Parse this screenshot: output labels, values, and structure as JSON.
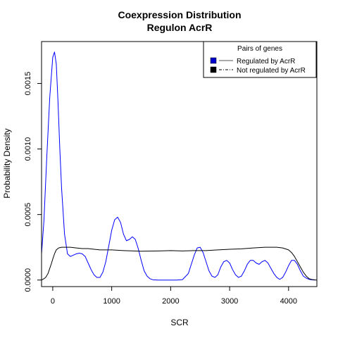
{
  "chart_data": {
    "type": "line",
    "title": "Coexpression Distribution",
    "subtitle": "Regulon AcrR",
    "xlabel": "SCR",
    "ylabel": "Probability Density",
    "xlim": [
      -190,
      4480
    ],
    "ylim": [
      -5e-05,
      0.00182
    ],
    "xticks": [
      0,
      1000,
      2000,
      3000,
      4000
    ],
    "xtick_labels": [
      "0",
      "1000",
      "2000",
      "3000",
      "4000"
    ],
    "yticks": [
      0,
      0.0005,
      0.001,
      0.0015
    ],
    "ytick_labels": [
      "0.0000",
      "0.0005",
      "0.0010",
      "0.0015"
    ],
    "grid": false,
    "legend": {
      "title": "Pairs of genes",
      "placement": "top-right",
      "entries": [
        {
          "label": "Regulated by  AcrR",
          "swatch_color": "#0000cc",
          "line_style": "solid"
        },
        {
          "label": "Not regulated by  AcrR",
          "swatch_color": "#000000",
          "line_style": "dashdot"
        }
      ]
    },
    "series": [
      {
        "name": "Regulated by  AcrR",
        "color": "#0000ff",
        "x": [
          -190,
          -150,
          -100,
          -50,
          0,
          30,
          60,
          90,
          120,
          150,
          200,
          250,
          300,
          350,
          400,
          450,
          500,
          550,
          600,
          650,
          700,
          750,
          800,
          850,
          900,
          950,
          1000,
          1050,
          1100,
          1150,
          1200,
          1250,
          1300,
          1350,
          1400,
          1450,
          1500,
          1550,
          1600,
          1650,
          1700,
          1800,
          1900,
          2000,
          2100,
          2200,
          2300,
          2350,
          2400,
          2450,
          2500,
          2550,
          2600,
          2650,
          2700,
          2750,
          2800,
          2850,
          2900,
          2950,
          3000,
          3050,
          3100,
          3150,
          3200,
          3250,
          3300,
          3350,
          3400,
          3450,
          3500,
          3550,
          3600,
          3650,
          3700,
          3750,
          3800,
          3850,
          3900,
          3950,
          4000,
          4050,
          4100,
          4150,
          4200,
          4250,
          4300,
          4350,
          4400,
          4450
        ],
        "y": [
          0.0002,
          0.00045,
          0.00095,
          0.0014,
          0.0017,
          0.00174,
          0.00165,
          0.00135,
          0.001,
          0.0007,
          0.00035,
          0.0002,
          0.00018,
          0.00019,
          0.0002,
          0.000205,
          0.0002,
          0.00018,
          0.00013,
          8e-05,
          4e-05,
          2e-05,
          2e-05,
          6e-05,
          0.00014,
          0.00026,
          0.00038,
          0.00046,
          0.00048,
          0.00044,
          0.00035,
          0.0003,
          0.00031,
          0.00033,
          0.00031,
          0.00024,
          0.00015,
          7e-05,
          3e-05,
          1e-05,
          2e-06,
          0.0,
          0.0,
          0.0,
          0.0,
          3e-06,
          5e-05,
          0.00012,
          0.00019,
          0.000245,
          0.00025,
          0.00021,
          0.00014,
          7e-05,
          3e-05,
          2e-05,
          4e-05,
          0.0001,
          0.00014,
          0.00015,
          0.00013,
          8e-05,
          4e-05,
          2e-05,
          3e-05,
          7e-05,
          0.00012,
          0.00015,
          0.00015,
          0.00013,
          0.00012,
          0.00014,
          0.00015,
          0.00013,
          9e-05,
          5e-05,
          2e-05,
          5e-06,
          2e-05,
          6e-05,
          0.00011,
          0.00015,
          0.00015,
          0.00012,
          7e-05,
          3e-05,
          1.5e-05,
          5e-06,
          2e-06,
          0.0
        ]
      },
      {
        "name": "Not regulated by  AcrR",
        "color": "#000000",
        "x": [
          -190,
          -150,
          -120,
          -80,
          -50,
          -20,
          0,
          30,
          60,
          100,
          150,
          200,
          300,
          400,
          500,
          600,
          800,
          1000,
          1200,
          1500,
          1800,
          2000,
          2200,
          2400,
          2600,
          2800,
          3000,
          3200,
          3400,
          3600,
          3800,
          3900,
          4000,
          4050,
          4100,
          4150,
          4200,
          4250,
          4300,
          4350,
          4400,
          4480
        ],
        "y": [
          0.0,
          1e-05,
          2e-05,
          5e-05,
          9e-05,
          0.00013,
          0.00016,
          0.0002,
          0.00023,
          0.000245,
          0.00025,
          0.00025,
          0.00025,
          0.000245,
          0.00024,
          0.00024,
          0.00023,
          0.00023,
          0.000225,
          0.00022,
          0.000222,
          0.000225,
          0.000222,
          0.000225,
          0.000225,
          0.00023,
          0.000235,
          0.000238,
          0.000245,
          0.00025,
          0.00025,
          0.000245,
          0.00023,
          0.00021,
          0.00018,
          0.00014,
          0.0001,
          6e-05,
          3e-05,
          1e-05,
          4e-06,
          0.0
        ]
      }
    ]
  }
}
